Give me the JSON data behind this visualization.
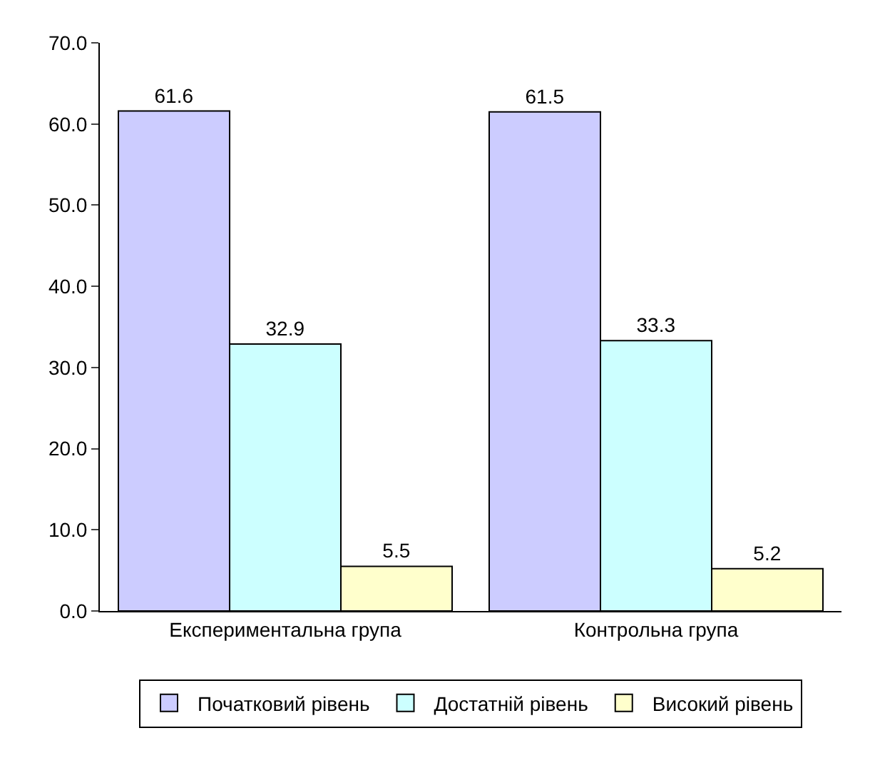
{
  "chart_data": {
    "type": "bar",
    "categories": [
      "Експериментальна група",
      "Контрольна група"
    ],
    "series": [
      {
        "name": "Початковий рівень",
        "color": "#ccccff",
        "values": [
          61.6,
          61.5
        ]
      },
      {
        "name": "Достатній рівень",
        "color": "#ccffff",
        "values": [
          32.9,
          33.3
        ]
      },
      {
        "name": "Високий рівень",
        "color": "#ffffcc",
        "values": [
          5.5,
          5.2
        ]
      }
    ],
    "ylim": [
      0,
      70
    ],
    "yticks": [
      {
        "value": 0,
        "label": "0.0"
      },
      {
        "value": 10,
        "label": "10.0"
      },
      {
        "value": 20,
        "label": "20.0"
      },
      {
        "value": 30,
        "label": "30.0"
      },
      {
        "value": 40,
        "label": "40.0"
      },
      {
        "value": 50,
        "label": "50.0"
      },
      {
        "value": 60,
        "label": "60.0"
      },
      {
        "value": 70,
        "label": "70.0"
      }
    ],
    "data_labels": true,
    "grid": false,
    "legend": "bottom"
  }
}
